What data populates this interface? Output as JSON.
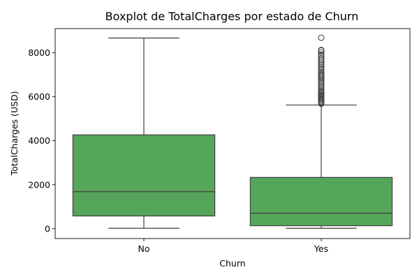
{
  "chart_data": {
    "type": "box",
    "title": "Boxplot de TotalCharges por estado de Churn",
    "xlabel": "Churn",
    "ylabel": "TotalCharges (USD)",
    "categories": [
      "No",
      "Yes"
    ],
    "ylim": [
      -450,
      9100
    ],
    "yticks": [
      0,
      2000,
      4000,
      6000,
      8000
    ],
    "box_color": "#55a65a",
    "line_color": "#3f3f3f",
    "grid": false,
    "boxes": [
      {
        "name": "No",
        "whisker_low": 18.8,
        "q1": 577,
        "median": 1684,
        "q3": 4265,
        "whisker_high": 8672,
        "outliers": []
      },
      {
        "name": "Yes",
        "whisker_low": 18.9,
        "q1": 134,
        "median": 703,
        "q3": 2331,
        "whisker_high": 5624,
        "outliers": [
          5680,
          5720,
          5770,
          5820,
          5870,
          5920,
          5970,
          6030,
          6080,
          6130,
          6180,
          6240,
          6300,
          6380,
          6450,
          6520,
          6600,
          6680,
          6750,
          6820,
          6880,
          6940,
          7000,
          7060,
          7130,
          7200,
          7280,
          7350,
          7430,
          7500,
          7580,
          7660,
          7740,
          7830,
          7920,
          8010,
          8100,
          8130,
          8685
        ]
      }
    ]
  }
}
